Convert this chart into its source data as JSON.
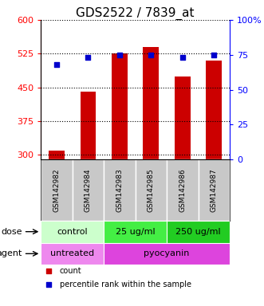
{
  "title": "GDS2522 / 7839_at",
  "samples": [
    "GSM142982",
    "GSM142984",
    "GSM142983",
    "GSM142985",
    "GSM142986",
    "GSM142987"
  ],
  "counts": [
    310,
    440,
    525,
    540,
    475,
    510
  ],
  "percentiles": [
    68,
    73,
    75,
    75,
    73,
    75
  ],
  "ylim_left": [
    290,
    600
  ],
  "ylim_right": [
    0,
    100
  ],
  "yticks_left": [
    300,
    375,
    450,
    525,
    600
  ],
  "yticks_right": [
    0,
    25,
    50,
    75,
    100
  ],
  "bar_color": "#cc0000",
  "dot_color": "#0000cc",
  "bar_width": 0.5,
  "dose_labels": [
    {
      "label": "control",
      "span": [
        0,
        2
      ],
      "color": "#ccffcc"
    },
    {
      "label": "25 ug/ml",
      "span": [
        2,
        4
      ],
      "color": "#44ee44"
    },
    {
      "label": "250 ug/ml",
      "span": [
        4,
        6
      ],
      "color": "#22cc22"
    }
  ],
  "agent_labels": [
    {
      "label": "untreated",
      "span": [
        0,
        2
      ],
      "color": "#ee88ee"
    },
    {
      "label": "pyocyanin",
      "span": [
        2,
        6
      ],
      "color": "#dd44dd"
    }
  ],
  "dose_row_label": "dose",
  "agent_row_label": "agent",
  "legend_count_label": "count",
  "legend_pct_label": "percentile rank within the sample",
  "grid_color": "black",
  "grid_linestyle": "dotted",
  "grid_linewidth": 0.8,
  "title_fontsize": 11,
  "tick_fontsize": 8,
  "label_fontsize": 8,
  "row_label_fontsize": 8,
  "sample_label_fontsize": 6.5,
  "legend_fontsize": 7
}
